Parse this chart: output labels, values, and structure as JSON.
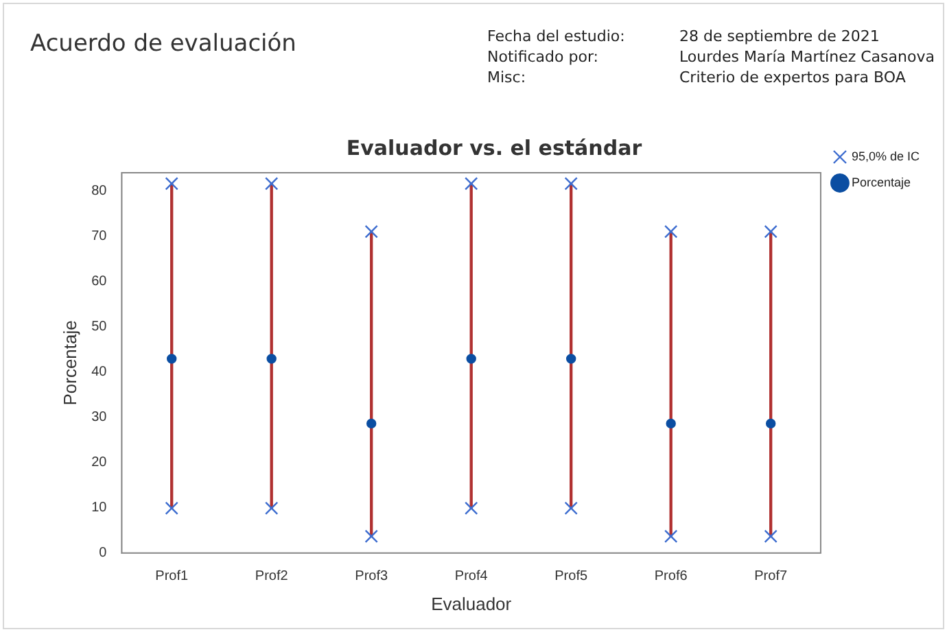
{
  "chart_data": {
    "type": "scatter",
    "title": "Acuerdo de evaluación",
    "subtitle": "Evaluador vs. el estándar",
    "xlabel": "Evaluador",
    "ylabel": "Porcentaje",
    "annotations": [
      "Fecha del estudio:",
      "28 de septiembre de 2021",
      "Notificado por:",
      "Lourdes María Martínez Casanova",
      "Misc:",
      "Criterio de expertos para BOA"
    ],
    "categories": [
      "Prof1",
      "Prof2",
      "Prof3",
      "Prof4",
      "Prof5",
      "Prof6",
      "Prof7"
    ],
    "series": [
      {
        "type": "bar",
        "color": "#b03030",
        "base": [
          9.9,
          9.9,
          3.7,
          9.9,
          9.9,
          3.7,
          3.7
        ],
        "values": [
          71.7,
          71.7,
          67.3,
          71.7,
          71.7,
          67.3,
          67.3
        ]
      },
      {
        "name": "95,0% de IC",
        "color": "#3c6ccf",
        "marker": "cross",
        "values": [
          81.6,
          81.6,
          71.0,
          81.6,
          81.6,
          71.0,
          71.0
        ]
      },
      {
        "color": "#3c6ccf",
        "marker": "cross",
        "values": [
          9.9,
          9.9,
          3.7,
          9.9,
          9.9,
          3.7,
          3.7
        ]
      },
      {
        "name": "Porcentaje",
        "color": "#0b4ea2",
        "marker": "circle",
        "values": [
          42.9,
          42.9,
          28.6,
          42.9,
          42.9,
          28.6,
          28.6
        ]
      }
    ],
    "ylim": [
      0,
      84
    ],
    "yticks": [
      0,
      10,
      20,
      30,
      40,
      50,
      60,
      70,
      80
    ],
    "legend": "top right"
  }
}
